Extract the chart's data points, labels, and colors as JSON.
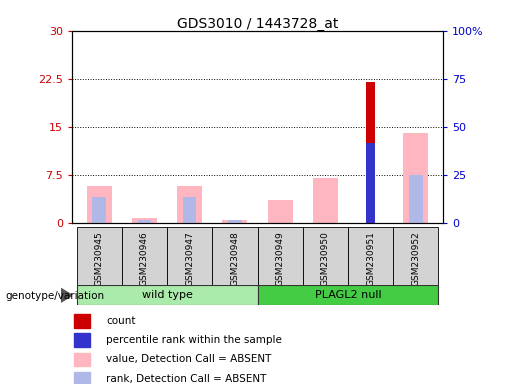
{
  "title": "GDS3010 / 1443728_at",
  "samples": [
    "GSM230945",
    "GSM230946",
    "GSM230947",
    "GSM230948",
    "GSM230949",
    "GSM230950",
    "GSM230951",
    "GSM230952"
  ],
  "count": [
    0,
    0,
    0,
    0,
    0,
    0,
    22.0,
    0
  ],
  "percentile_rank": [
    0,
    0,
    0,
    0,
    0,
    0,
    12.5,
    0
  ],
  "value_absent": [
    5.8,
    0.8,
    5.8,
    0.5,
    3.5,
    7.0,
    0,
    14.0
  ],
  "rank_absent": [
    4.0,
    0.5,
    4.0,
    0.5,
    0,
    0,
    0,
    7.5
  ],
  "left_ylim": [
    0,
    30
  ],
  "left_yticks": [
    0,
    7.5,
    15,
    22.5,
    30
  ],
  "right_ylim": [
    0,
    100
  ],
  "right_yticks": [
    0,
    25,
    50,
    75,
    100
  ],
  "right_yticklabels": [
    "0",
    "25",
    "50",
    "75",
    "100%"
  ],
  "color_count": "#cc0000",
  "color_rank": "#3333cc",
  "color_value_absent": "#ffb6c1",
  "color_rank_absent": "#b0b8e8",
  "genotype_label": "genotype/variation",
  "wt_group": [
    0,
    1,
    2,
    3
  ],
  "null_group": [
    4,
    5,
    6,
    7
  ],
  "wt_color": "#b3f0b3",
  "null_color": "#66dd66",
  "legend_items": [
    "count",
    "percentile rank within the sample",
    "value, Detection Call = ABSENT",
    "rank, Detection Call = ABSENT"
  ]
}
